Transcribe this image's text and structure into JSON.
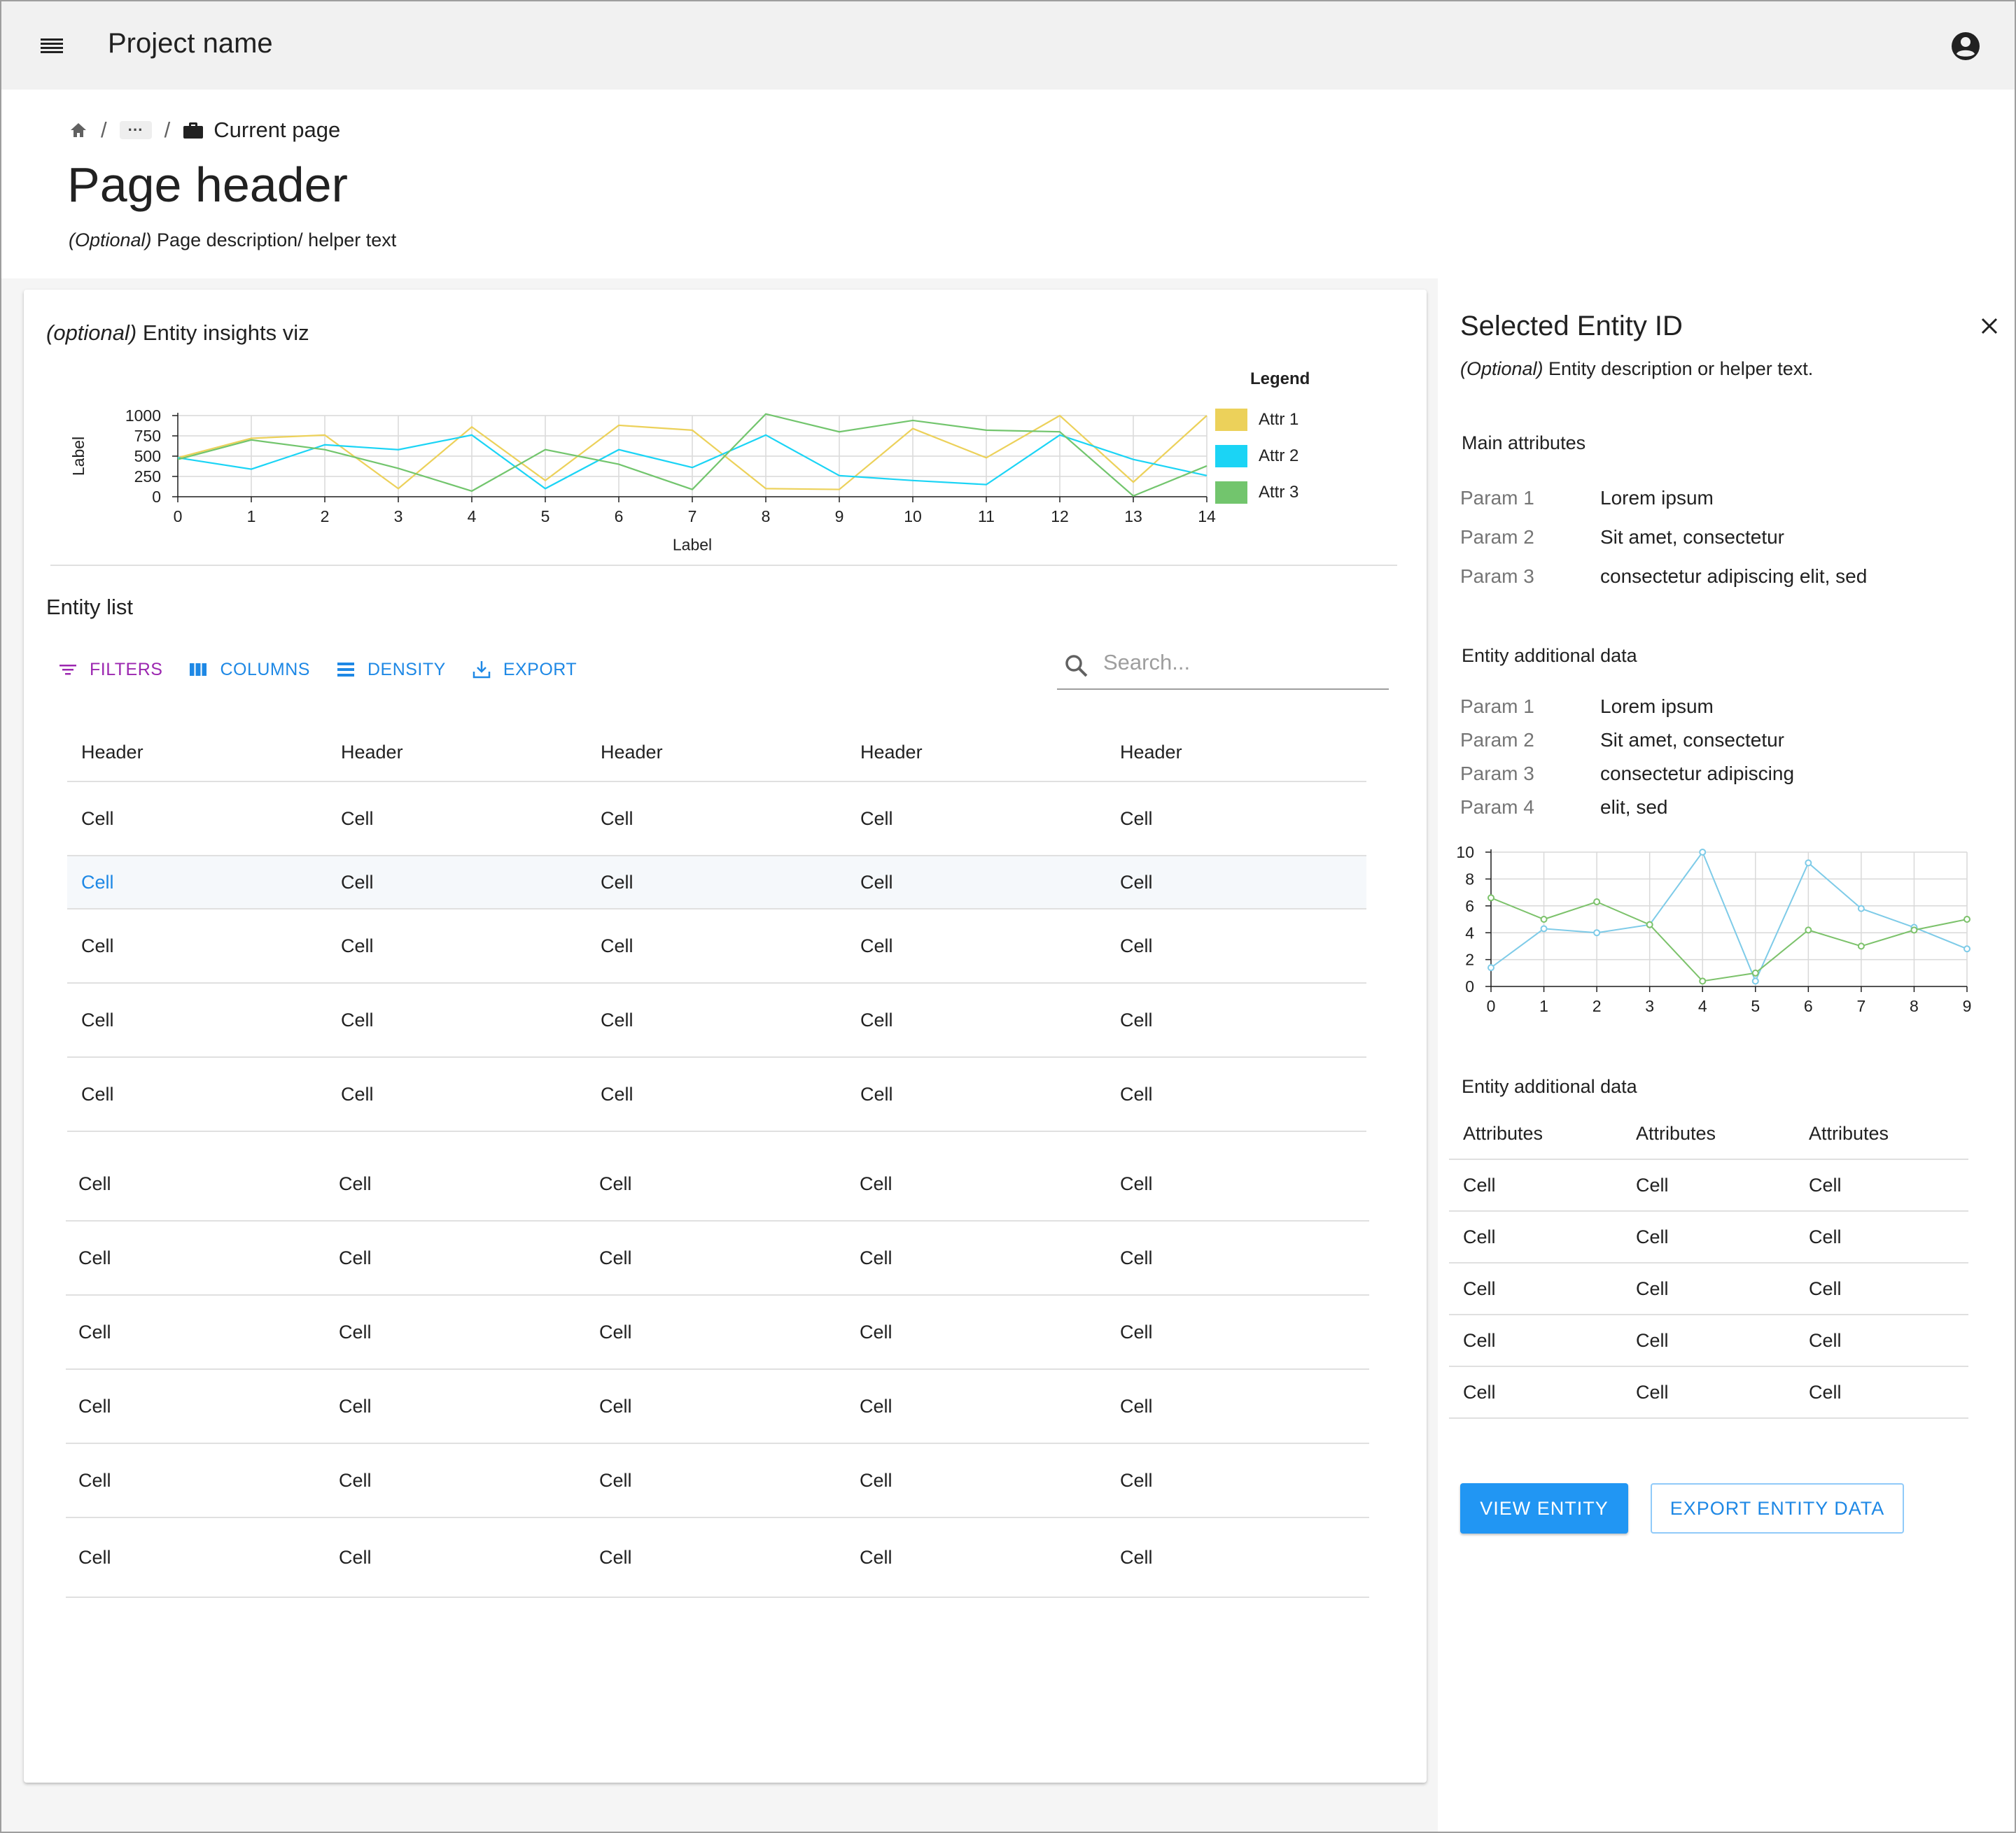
{
  "app": {
    "title": "Project name"
  },
  "breadcrumb": {
    "ellipsis": "···",
    "separator": "/",
    "current": "Current page"
  },
  "page": {
    "title": "Page header",
    "description_optional": "(Optional)",
    "description": " Page description/ helper text"
  },
  "insights": {
    "title_optional": "(optional)",
    "title": " Entity insights viz",
    "legend_title": "Legend"
  },
  "chart_data": [
    {
      "type": "line",
      "xlabel": "Label",
      "ylabel": "Label",
      "x": [
        0,
        1,
        2,
        3,
        4,
        5,
        6,
        7,
        8,
        9,
        10,
        11,
        12,
        13,
        14
      ],
      "xlim": [
        0,
        14
      ],
      "ylim": [
        0,
        1000
      ],
      "yticks": [
        0,
        250,
        500,
        750,
        1000
      ],
      "grid": true,
      "legend_position": "right",
      "series": [
        {
          "name": "Attr 1",
          "color": "#ecd15a",
          "values": [
            480,
            720,
            760,
            100,
            860,
            200,
            880,
            820,
            100,
            90,
            840,
            480,
            1000,
            180,
            1000
          ]
        },
        {
          "name": "Attr 2",
          "color": "#1bd4f5",
          "values": [
            480,
            340,
            640,
            580,
            760,
            100,
            580,
            360,
            760,
            260,
            200,
            150,
            760,
            460,
            260
          ]
        },
        {
          "name": "Attr 3",
          "color": "#72c56d",
          "values": [
            460,
            700,
            580,
            350,
            70,
            580,
            400,
            90,
            1020,
            800,
            940,
            820,
            800,
            10,
            380
          ]
        }
      ]
    },
    {
      "type": "line",
      "x": [
        0,
        1,
        2,
        3,
        4,
        5,
        6,
        7,
        8,
        9
      ],
      "xlim": [
        0,
        9
      ],
      "ylim": [
        0,
        10
      ],
      "yticks": [
        0,
        2,
        4,
        6,
        8,
        10
      ],
      "grid": true,
      "series": [
        {
          "color": "#7ecbe8",
          "values": [
            1.4,
            4.3,
            4.0,
            4.6,
            10,
            0.4,
            9.2,
            5.8,
            4.4,
            2.8
          ]
        },
        {
          "color": "#7cc26b",
          "values": [
            6.6,
            5.0,
            6.3,
            4.6,
            0.4,
            1.0,
            4.2,
            3.0,
            4.2,
            5.0
          ]
        }
      ]
    }
  ],
  "entity_list": {
    "title": "Entity list",
    "toolbar": {
      "filters": "FILTERS",
      "columns": "COLUMNS",
      "density": "DENSITY",
      "export": "EXPORT"
    },
    "search_placeholder": "Search...",
    "headers": [
      "Header",
      "Header",
      "Header",
      "Header",
      "Header"
    ],
    "rows": [
      [
        "Cell",
        "Cell",
        "Cell",
        "Cell",
        "Cell"
      ],
      [
        "Cell",
        "Cell",
        "Cell",
        "Cell",
        "Cell"
      ],
      [
        "Cell",
        "Cell",
        "Cell",
        "Cell",
        "Cell"
      ],
      [
        "Cell",
        "Cell",
        "Cell",
        "Cell",
        "Cell"
      ],
      [
        "Cell",
        "Cell",
        "Cell",
        "Cell",
        "Cell"
      ]
    ],
    "rows2": [
      [
        "Cell",
        "Cell",
        "Cell",
        "Cell",
        "Cell"
      ],
      [
        "Cell",
        "Cell",
        "Cell",
        "Cell",
        "Cell"
      ],
      [
        "Cell",
        "Cell",
        "Cell",
        "Cell",
        "Cell"
      ],
      [
        "Cell",
        "Cell",
        "Cell",
        "Cell",
        "Cell"
      ],
      [
        "Cell",
        "Cell",
        "Cell",
        "Cell",
        "Cell"
      ],
      [
        "Cell",
        "Cell",
        "Cell",
        "Cell",
        "Cell"
      ]
    ]
  },
  "side_panel": {
    "title": "Selected Entity ID",
    "desc_optional": "(Optional)",
    "desc": " Entity description or helper text.",
    "main_attributes_title": "Main attributes",
    "main_attributes": [
      {
        "key": "Param 1",
        "value": "Lorem ipsum"
      },
      {
        "key": "Param 2",
        "value": "Sit amet, consectetur"
      },
      {
        "key": "Param 3",
        "value": "consectetur adipiscing elit, sed"
      }
    ],
    "additional_title": "Entity additional data",
    "additional": [
      {
        "key": "Param 1",
        "value": "Lorem ipsum"
      },
      {
        "key": "Param 2",
        "value": "Sit amet, consectetur"
      },
      {
        "key": "Param 3",
        "value": "consectetur adipiscing"
      },
      {
        "key": "Param 4",
        "value": "elit, sed"
      }
    ],
    "additional_table_title": "Entity additional data",
    "table_headers": [
      "Attributes",
      "Attributes",
      "Attributes"
    ],
    "table_rows": [
      [
        "Cell",
        "Cell",
        "Cell"
      ],
      [
        "Cell",
        "Cell",
        "Cell"
      ],
      [
        "Cell",
        "Cell",
        "Cell"
      ],
      [
        "Cell",
        "Cell",
        "Cell"
      ],
      [
        "Cell",
        "Cell",
        "Cell"
      ]
    ],
    "view_button": "VIEW ENTITY",
    "export_button": "EXPORT ENTITY DATA"
  },
  "colors": {
    "primary": "#2196f3",
    "link": "#1e88e5",
    "filters": "#9c27b0"
  }
}
